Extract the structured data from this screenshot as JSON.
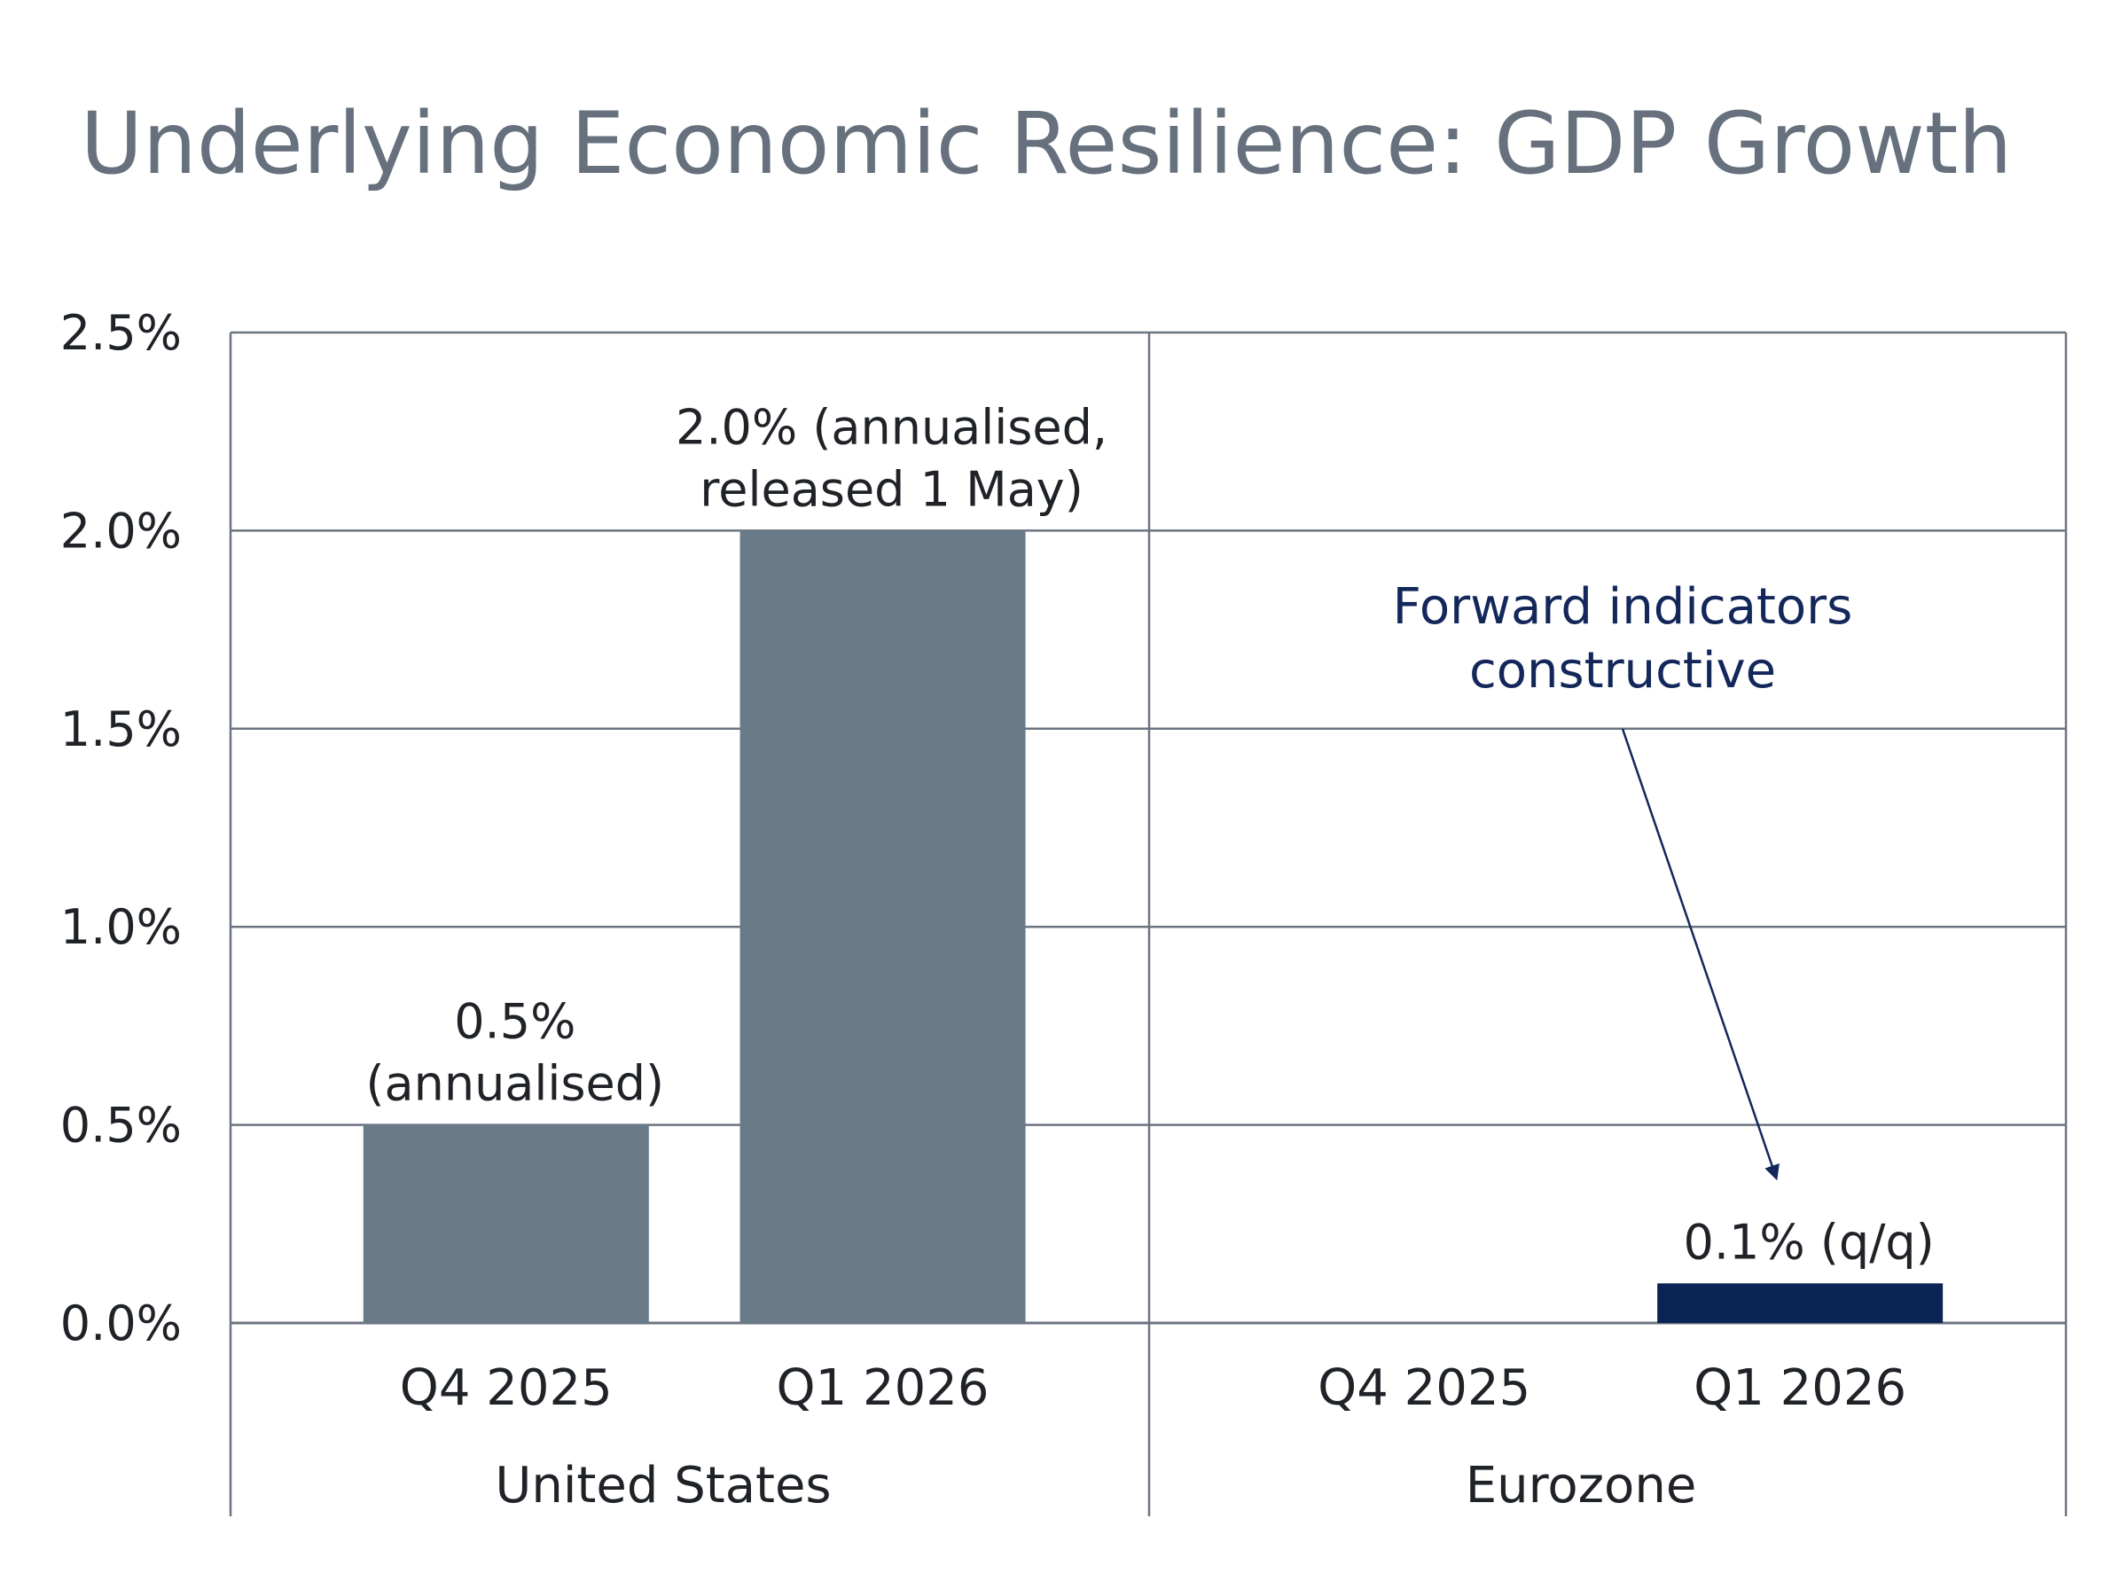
{
  "chart_data": {
    "type": "bar",
    "title": "Underlying Economic Resilience: GDP Growth",
    "ylim": [
      0,
      2.5
    ],
    "yticks": [
      0,
      0.5,
      1.0,
      1.5,
      2.0,
      2.5
    ],
    "ytick_labels": [
      "0.0%",
      "0.5%",
      "1.0%",
      "1.5%",
      "2.0%",
      "2.5%"
    ],
    "grid": true,
    "groups": [
      {
        "name": "United States",
        "categories": [
          "Q4 2025",
          "Q1 2026"
        ],
        "values": [
          0.5,
          2.0
        ],
        "labels": [
          [
            "0.5%",
            "(annualised)"
          ],
          [
            "2.0% (annualised,",
            "released 1 May)"
          ]
        ],
        "colors": [
          "#697a89",
          "#697a89"
        ]
      },
      {
        "name": "Eurozone",
        "categories": [
          "Q4 2025",
          "Q1 2026"
        ],
        "values": [
          null,
          0.1
        ],
        "labels": [
          [],
          [
            "0.1% (q/q)"
          ]
        ],
        "colors": [
          "#697a89",
          "#0c2356"
        ]
      }
    ],
    "annotations": [
      {
        "text": [
          "Forward indicators",
          "constructive"
        ],
        "target_group": 1,
        "target_category": 1,
        "color": "#13275a"
      }
    ]
  },
  "colors": {
    "title": "#66717d",
    "grid": "#6b7480",
    "text": "#1f2227"
  }
}
